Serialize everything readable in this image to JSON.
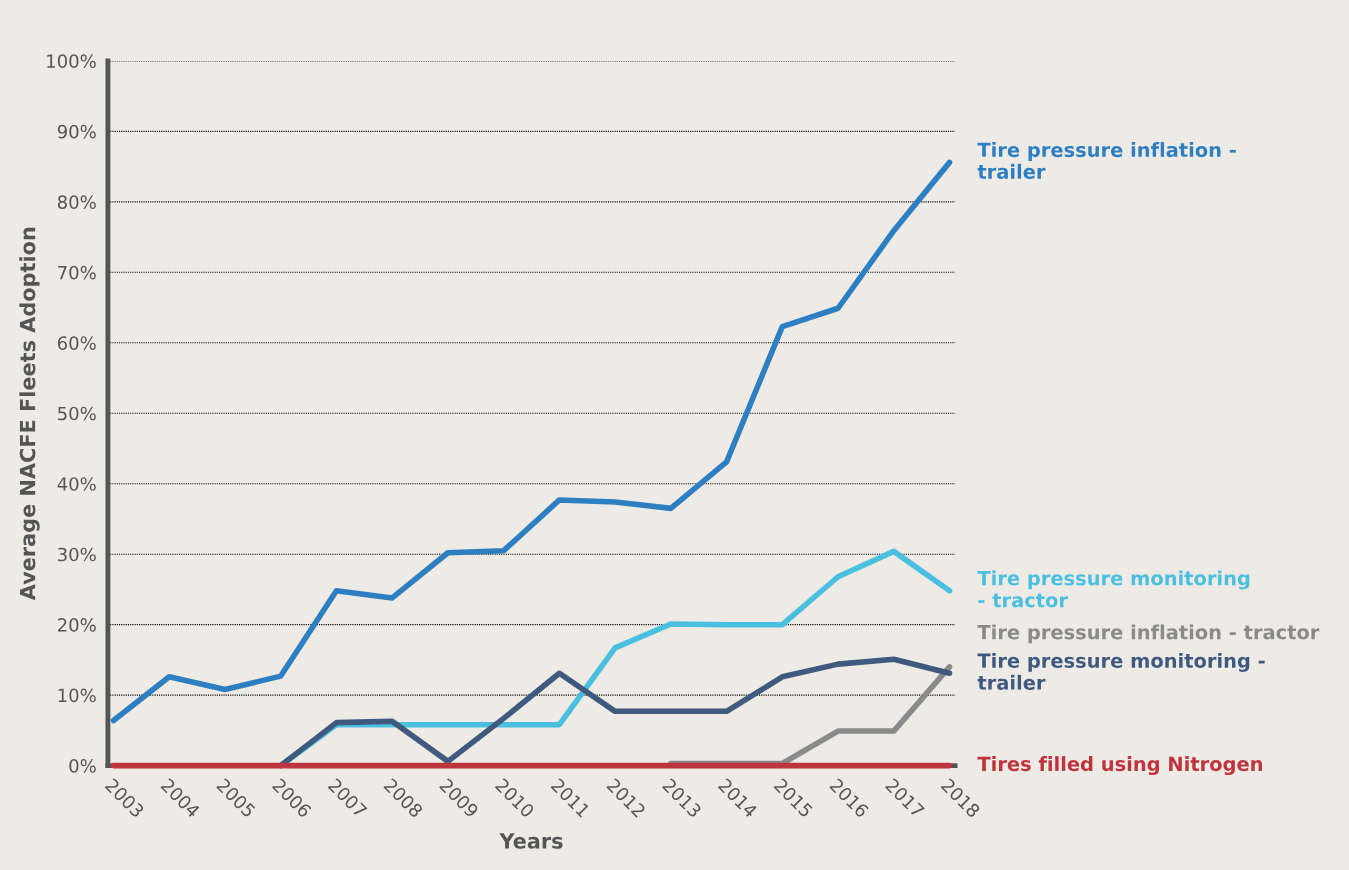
{
  "chart_data": {
    "type": "line",
    "xlabel": "Years",
    "ylabel": "Average NACFE Fleets Adoption",
    "categories": [
      "2003",
      "2004",
      "2005",
      "2006",
      "2007",
      "2008",
      "2009",
      "2010",
      "2011",
      "2012",
      "2013",
      "2014",
      "2015",
      "2016",
      "2017",
      "2018"
    ],
    "ylim": [
      0,
      100
    ],
    "yticks": [
      {
        "value": 0,
        "label": "0%"
      },
      {
        "value": 10,
        "label": "10%"
      },
      {
        "value": 20,
        "label": "20%"
      },
      {
        "value": 30,
        "label": "30%"
      },
      {
        "value": 40,
        "label": "40%"
      },
      {
        "value": 50,
        "label": "50%"
      },
      {
        "value": 60,
        "label": "60%"
      },
      {
        "value": 70,
        "label": "70%"
      },
      {
        "value": 80,
        "label": "80%"
      },
      {
        "value": 90,
        "label": "90%"
      },
      {
        "value": 100,
        "label": "100%"
      }
    ],
    "grid": "y",
    "legend": false,
    "marker": "none",
    "line_style": "solid",
    "series": [
      {
        "name": "Tire pressure inflation -\ntrailer",
        "color": "#2e7fc1",
        "values": [
          6.4,
          12.6,
          10.8,
          12.7,
          24.8,
          23.8,
          30.2,
          30.5,
          37.7,
          37.4,
          36.5,
          43.1,
          62.3,
          64.9,
          75.9,
          85.6
        ]
      },
      {
        "name": "Tire pressure monitoring\n- tractor",
        "color": "#4bbfe0",
        "values": [
          null,
          null,
          null,
          0,
          5.8,
          5.8,
          5.8,
          5.8,
          5.8,
          16.7,
          20.1,
          20.0,
          20.0,
          26.8,
          30.4,
          24.8
        ]
      },
      {
        "name": "Tire pressure inflation - tractor",
        "color": "#8a8a8a",
        "values": [
          null,
          null,
          null,
          null,
          null,
          null,
          null,
          null,
          null,
          null,
          0.3,
          0.3,
          0.3,
          4.9,
          4.9,
          14.0
        ]
      },
      {
        "name": "Tire pressure monitoring -\ntrailer",
        "color": "#3f5a7e",
        "values": [
          null,
          null,
          null,
          0,
          6.1,
          6.3,
          0.6,
          6.7,
          13.1,
          7.7,
          7.7,
          7.7,
          12.6,
          14.4,
          15.1,
          13.1
        ]
      },
      {
        "name": "Tires filled using Nitrogen",
        "color": "#c0343d",
        "values": [
          0,
          0,
          0,
          0,
          0,
          0,
          0,
          0,
          0,
          0,
          0,
          0,
          0,
          0,
          0,
          0
        ]
      }
    ]
  }
}
